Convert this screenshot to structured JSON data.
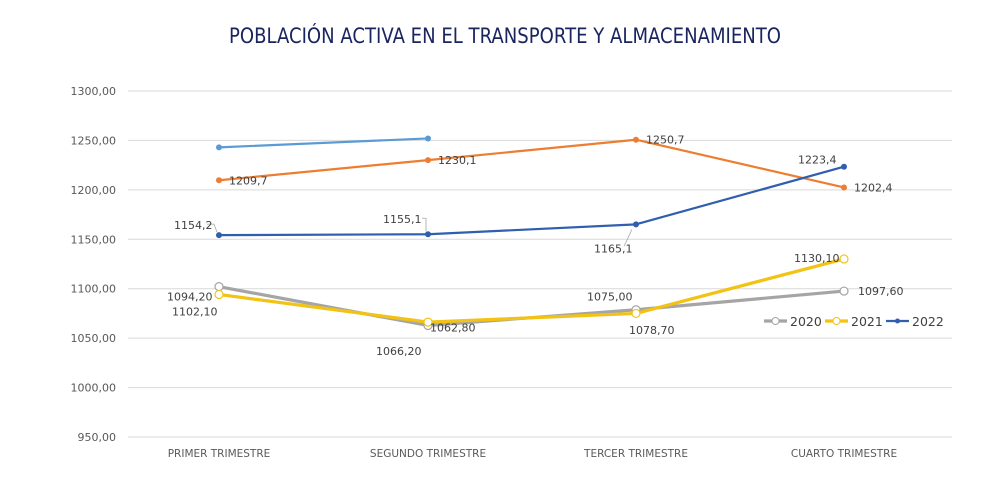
{
  "chart_data": {
    "type": "line",
    "title": "POBLACIÓN ACTIVA EN EL TRANSPORTE Y ALMACENAMIENTO",
    "xlabel": "",
    "ylabel": "",
    "categories": [
      "PRIMER TRIMESTRE",
      "SEGUNDO TRIMESTRE",
      "TERCER TRIMESTRE",
      "CUARTO TRIMESTRE"
    ],
    "ylim": [
      950,
      1300
    ],
    "yticks": [
      950,
      1000,
      1050,
      1100,
      1150,
      1200,
      1250,
      1300
    ],
    "ytick_labels": [
      "950,00",
      "1000,00",
      "1050,00",
      "1100,00",
      "1150,00",
      "1200,00",
      "1250,00",
      "1300,00"
    ],
    "grid": true,
    "legend_position": "right",
    "series": [
      {
        "name": "",
        "in_legend": false,
        "color": "#5b9bd5",
        "values": [
          1243,
          1252,
          null,
          null
        ],
        "labels": [
          null,
          null,
          null,
          null
        ],
        "marker": "dot",
        "width": 2.2
      },
      {
        "name": "",
        "in_legend": false,
        "color": "#ed7d31",
        "values": [
          1209.7,
          1230.1,
          1250.7,
          1202.4
        ],
        "labels": [
          "1209,7",
          "1230,1",
          "1250,7",
          "1202,4"
        ],
        "marker": "dot",
        "width": 2.2
      },
      {
        "name": "2020",
        "in_legend": true,
        "color": "#a5a5a5",
        "values": [
          1102.1,
          1062.8,
          1078.7,
          1097.6
        ],
        "labels": [
          "1102,10",
          "1062,80",
          "1078,70",
          "1097,60"
        ],
        "marker": "circle",
        "width": 3.2
      },
      {
        "name": "2021",
        "in_legend": true,
        "color": "#f2c314",
        "values": [
          1094.2,
          1066.2,
          1075.0,
          1130.1
        ],
        "labels": [
          "1094,20",
          "1066,20",
          "1075,00",
          "1130,10"
        ],
        "marker": "circle",
        "width": 3.2
      },
      {
        "name": "2022",
        "in_legend": true,
        "color": "#2f5fad",
        "values": [
          1154.2,
          1155.1,
          1165.1,
          1223.4
        ],
        "labels": [
          "1154,2",
          "1155,1",
          "1165,1",
          "1223,4"
        ],
        "marker": "dot",
        "width": 2.2
      }
    ]
  }
}
